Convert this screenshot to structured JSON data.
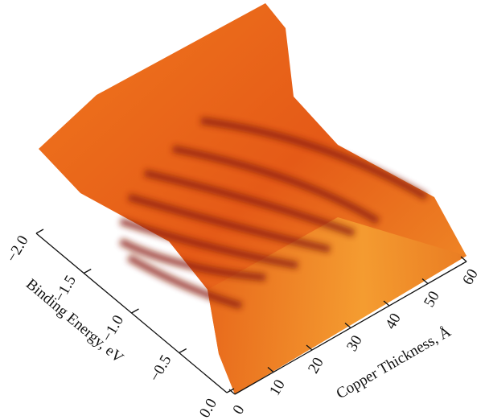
{
  "chart_data": {
    "type": "surface3d",
    "x_label": "Copper Thickness, Å",
    "y_label": "Binding Energy, eV",
    "xlim": [
      0,
      60
    ],
    "xticks": [
      0,
      10,
      20,
      30,
      40,
      50,
      60
    ],
    "ylim": [
      -2.0,
      0.0
    ],
    "yticks": [
      {
        "value": -2.0,
        "label": "−2.0"
      },
      {
        "value": -1.5,
        "label": "−1.5"
      },
      {
        "value": -1.0,
        "label": "−1.0"
      },
      {
        "value": -0.5,
        "label": "−0.5"
      },
      {
        "value": 0.0,
        "label": "0.0"
      }
    ],
    "color": "#e8661c"
  }
}
